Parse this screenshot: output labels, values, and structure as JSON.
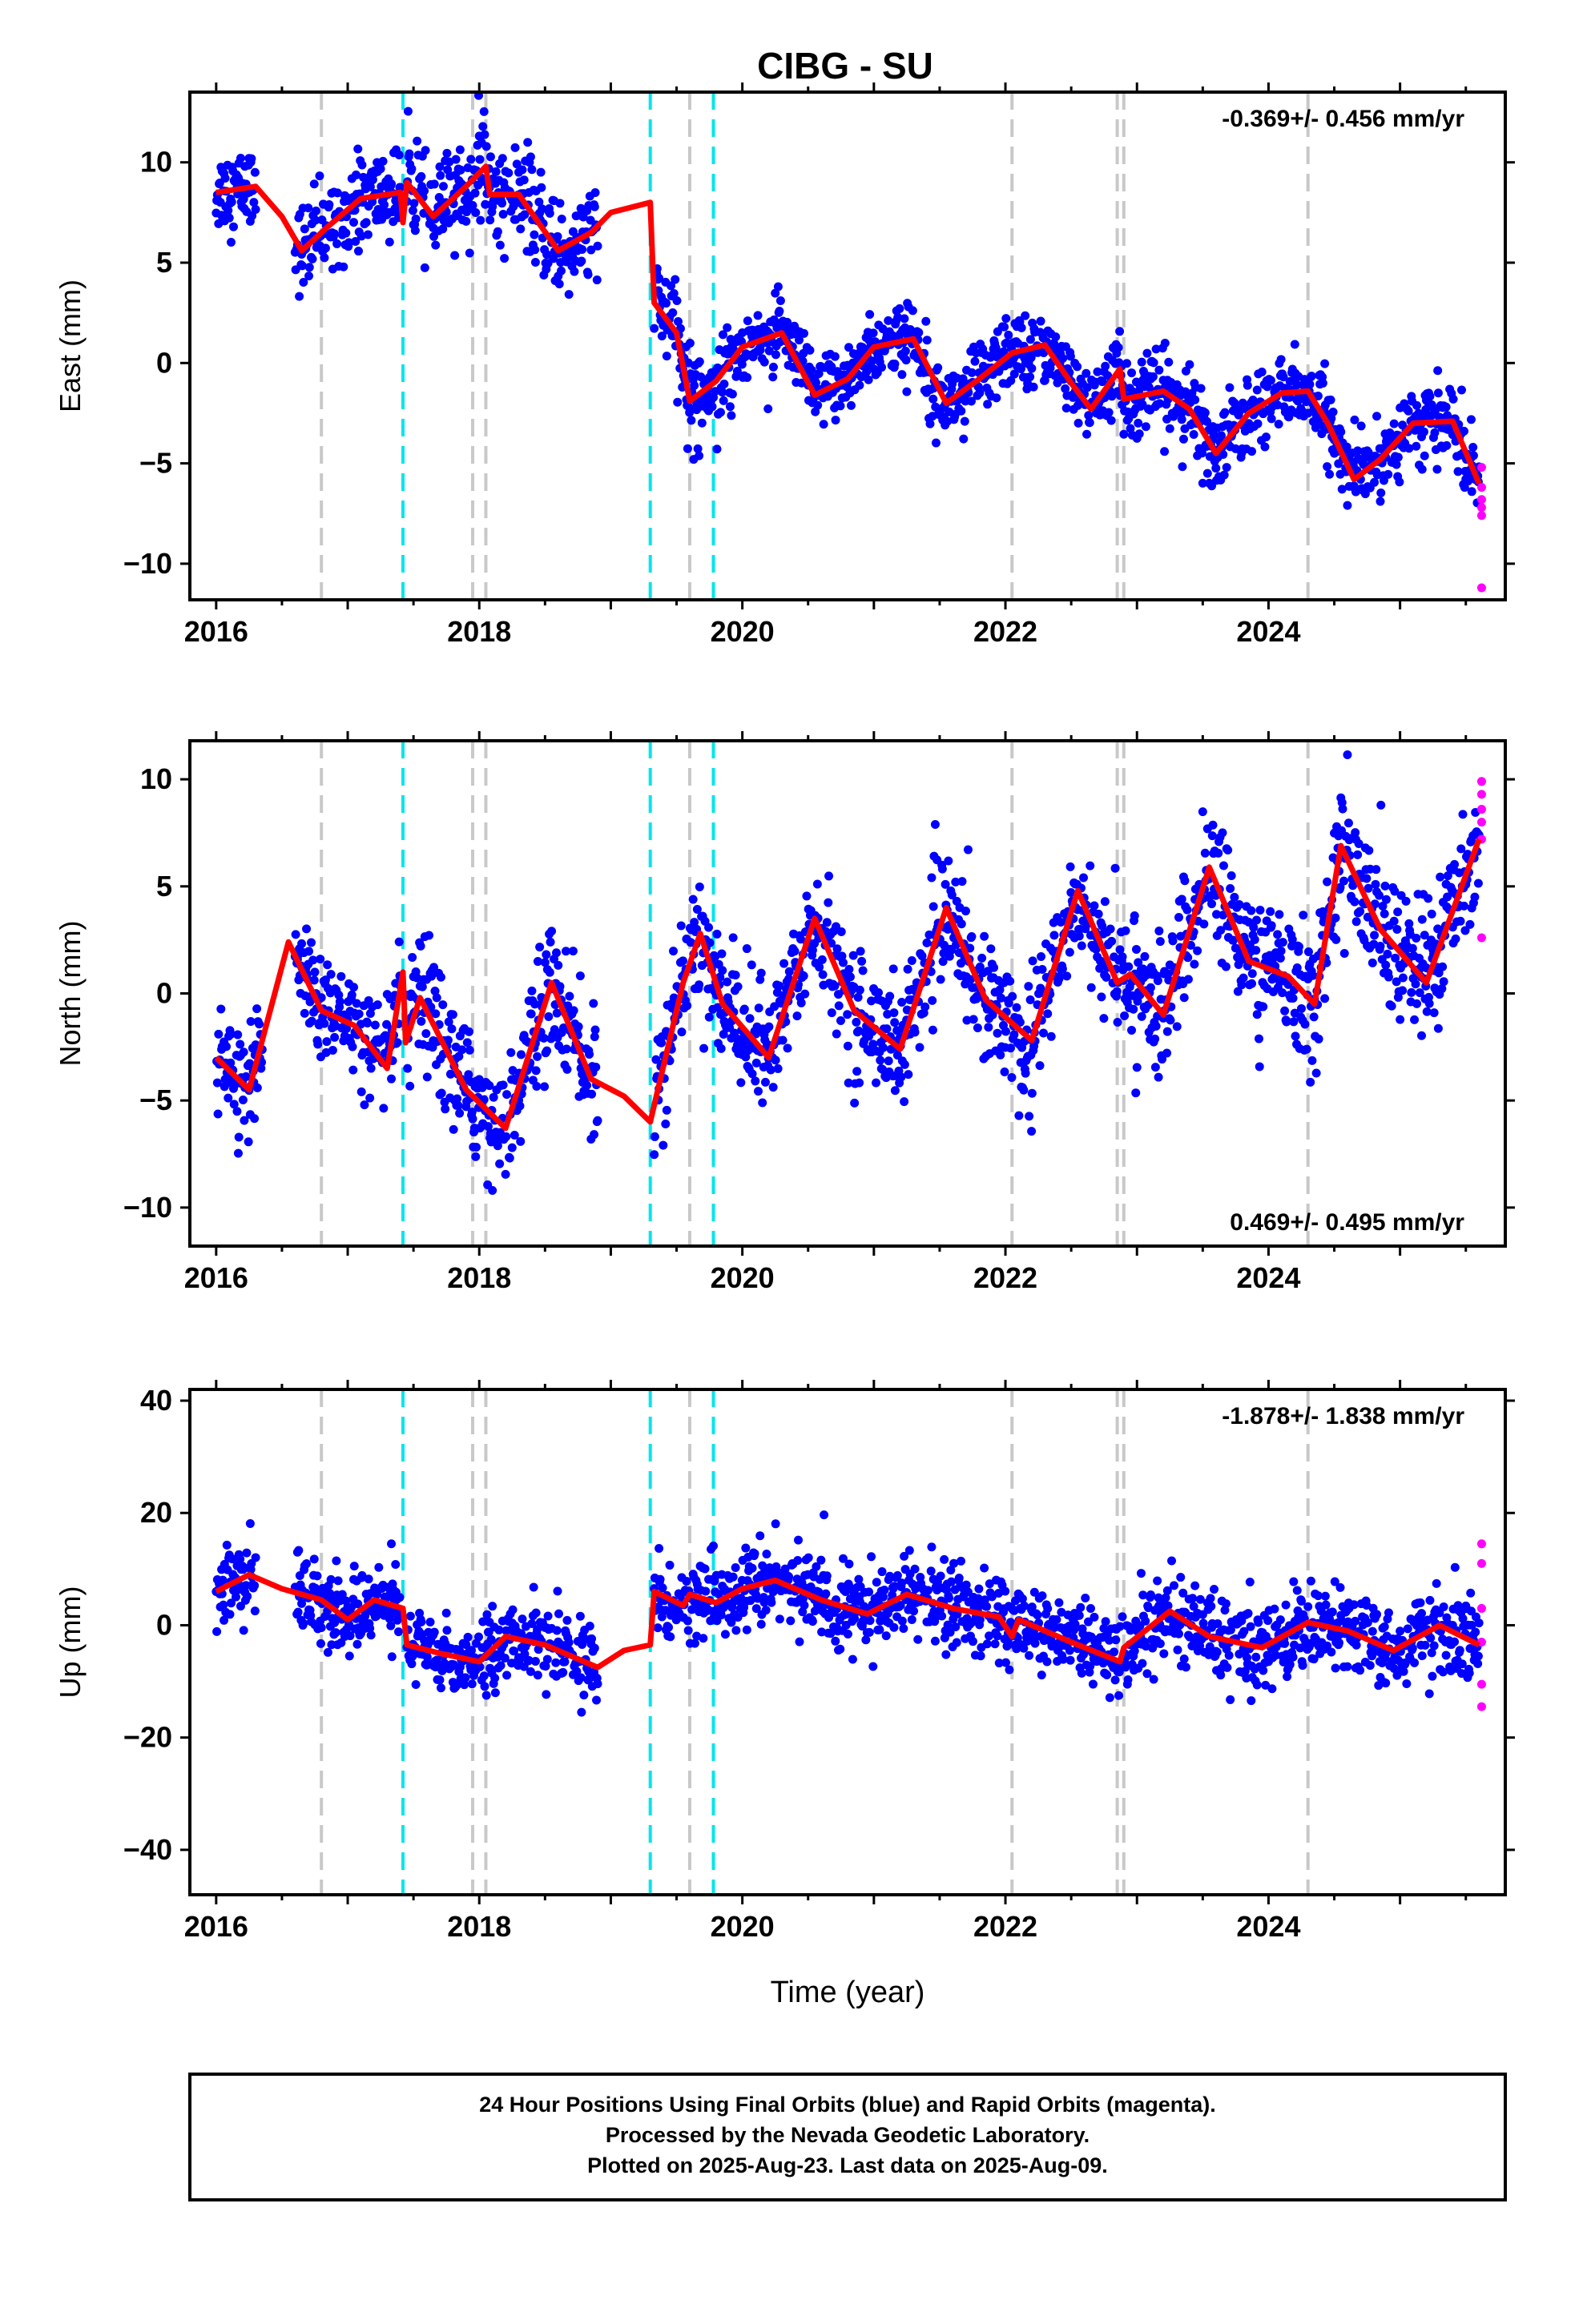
{
  "title": "CIBG - SU",
  "xlabel": "Time (year)",
  "footer": {
    "line1": "24 Hour Positions Using Final Orbits (blue) and Rapid Orbits (magenta).",
    "line2": "Processed by the Nevada Geodetic Laboratory.",
    "line3": "Plotted on 2025-Aug-23. Last data on 2025-Aug-09."
  },
  "colors": {
    "final": "#0000ff",
    "rapid": "#ff00ff",
    "model": "#ff0000",
    "gray_event": "#c8c8c8",
    "cyan_event": "#00e5ee"
  },
  "chart_data": [
    {
      "type": "scatter",
      "ylabel": "East (mm)",
      "rate": "-0.369+/- 0.456 mm/yr",
      "xlim": [
        2015.8,
        2025.8
      ],
      "ylim": [
        -11.8,
        13.5
      ],
      "xticks": [
        2016,
        2018,
        2020,
        2022,
        2024
      ],
      "yticks": [
        -10,
        -5,
        0,
        5,
        10
      ],
      "model": [
        [
          2016.0,
          8.5
        ],
        [
          2016.3,
          8.8
        ],
        [
          2016.5,
          7.3
        ],
        [
          2016.65,
          5.6
        ],
        [
          2016.85,
          6.8
        ],
        [
          2017.1,
          8.2
        ],
        [
          2017.4,
          8.5
        ],
        [
          2017.42,
          7.0
        ],
        [
          2017.45,
          9.0
        ],
        [
          2017.65,
          7.3
        ],
        [
          2017.9,
          8.8
        ],
        [
          2018.05,
          9.8
        ],
        [
          2018.08,
          8.4
        ],
        [
          2018.3,
          8.4
        ],
        [
          2018.6,
          5.6
        ],
        [
          2018.85,
          6.5
        ],
        [
          2019.0,
          7.5
        ],
        [
          2019.3,
          8.0
        ],
        [
          2019.33,
          3.0
        ],
        [
          2019.5,
          1.5
        ],
        [
          2019.6,
          -1.9
        ],
        [
          2019.8,
          -0.9
        ],
        [
          2020.0,
          0.8
        ],
        [
          2020.3,
          1.5
        ],
        [
          2020.55,
          -1.6
        ],
        [
          2020.8,
          -0.8
        ],
        [
          2021.0,
          0.8
        ],
        [
          2021.3,
          1.2
        ],
        [
          2021.55,
          -2.0
        ],
        [
          2021.8,
          -0.8
        ],
        [
          2022.05,
          0.5
        ],
        [
          2022.3,
          0.9
        ],
        [
          2022.5,
          -1.0
        ],
        [
          2022.65,
          -2.3
        ],
        [
          2022.87,
          -0.3
        ],
        [
          2022.9,
          -1.8
        ],
        [
          2023.2,
          -1.4
        ],
        [
          2023.4,
          -2.3
        ],
        [
          2023.6,
          -4.5
        ],
        [
          2023.85,
          -2.5
        ],
        [
          2024.1,
          -1.5
        ],
        [
          2024.3,
          -1.4
        ],
        [
          2024.45,
          -3.0
        ],
        [
          2024.65,
          -5.8
        ],
        [
          2024.85,
          -4.8
        ],
        [
          2025.1,
          -3.0
        ],
        [
          2025.4,
          -2.9
        ],
        [
          2025.6,
          -6.0
        ]
      ],
      "segments": [
        {
          "from": 2016.0,
          "to": 2016.3,
          "mean": 8.4,
          "spread": 1.8
        },
        {
          "from": 2016.6,
          "to": 2017.4,
          "mean": 7.3,
          "spread": 2.0
        },
        {
          "from": 2017.45,
          "to": 2018.9,
          "mean": 8.2,
          "spread": 2.2
        },
        {
          "from": 2019.33,
          "to": 2020.0,
          "mean": 1.0,
          "spread": 2.2
        },
        {
          "from": 2020.0,
          "to": 2022.9,
          "mean": 0.0,
          "spread": 1.6
        },
        {
          "from": 2022.9,
          "to": 2024.5,
          "mean": -2.3,
          "spread": 1.8
        },
        {
          "from": 2024.5,
          "to": 2025.6,
          "mean": -4.0,
          "spread": 1.6
        }
      ],
      "rapid": [
        [
          2025.62,
          -5.2
        ],
        [
          2025.62,
          -6.2
        ],
        [
          2025.62,
          -6.8
        ],
        [
          2025.62,
          -7.2
        ],
        [
          2025.62,
          -7.6
        ],
        [
          2025.62,
          -11.2
        ]
      ]
    },
    {
      "type": "scatter",
      "ylabel": "North (mm)",
      "rate": "0.469+/- 0.495 mm/yr",
      "xlim": [
        2015.8,
        2025.8
      ],
      "ylim": [
        -11.8,
        11.8
      ],
      "xticks": [
        2016,
        2018,
        2020,
        2022,
        2024
      ],
      "yticks": [
        -10,
        -5,
        0,
        5,
        10
      ],
      "model": [
        [
          2016.0,
          -3.0
        ],
        [
          2016.25,
          -4.5
        ],
        [
          2016.55,
          2.4
        ],
        [
          2016.8,
          -0.8
        ],
        [
          2017.05,
          -1.5
        ],
        [
          2017.3,
          -3.5
        ],
        [
          2017.42,
          1.0
        ],
        [
          2017.44,
          -2.3
        ],
        [
          2017.55,
          -0.2
        ],
        [
          2017.9,
          -4.5
        ],
        [
          2018.2,
          -6.3
        ],
        [
          2018.55,
          0.5
        ],
        [
          2018.85,
          -4.0
        ],
        [
          2019.1,
          -4.8
        ],
        [
          2019.3,
          -6.0
        ],
        [
          2019.55,
          0.5
        ],
        [
          2019.68,
          2.8
        ],
        [
          2019.85,
          -0.5
        ],
        [
          2020.2,
          -3.0
        ],
        [
          2020.55,
          3.5
        ],
        [
          2020.85,
          -0.8
        ],
        [
          2021.2,
          -2.6
        ],
        [
          2021.55,
          4.0
        ],
        [
          2021.85,
          -0.3
        ],
        [
          2022.2,
          -2.2
        ],
        [
          2022.55,
          4.8
        ],
        [
          2022.85,
          0.5
        ],
        [
          2022.95,
          0.9
        ],
        [
          2023.2,
          -1.0
        ],
        [
          2023.55,
          5.9
        ],
        [
          2023.85,
          1.5
        ],
        [
          2024.15,
          0.8
        ],
        [
          2024.35,
          -0.5
        ],
        [
          2024.55,
          6.9
        ],
        [
          2024.85,
          3.0
        ],
        [
          2025.2,
          0.5
        ],
        [
          2025.6,
          7.2
        ]
      ],
      "segments": [
        {
          "from": 2016.0,
          "to": 2016.35,
          "mean": -3.5,
          "spread": 2.0
        },
        {
          "from": 2016.6,
          "to": 2017.4,
          "mean": -1.0,
          "spread": 2.2
        },
        {
          "from": 2017.45,
          "to": 2018.9,
          "mean": -3.5,
          "spread": 2.6
        },
        {
          "from": 2019.33,
          "to": 2022.9,
          "mean": 0.0,
          "spread": 2.6
        },
        {
          "from": 2022.9,
          "to": 2025.6,
          "mean": 2.0,
          "spread": 2.8
        }
      ],
      "rapid": [
        [
          2025.62,
          2.6
        ],
        [
          2025.62,
          7.2
        ],
        [
          2025.62,
          8.0
        ],
        [
          2025.62,
          8.6
        ],
        [
          2025.62,
          9.3
        ],
        [
          2025.62,
          9.9
        ]
      ]
    },
    {
      "type": "scatter",
      "ylabel": "Up (mm)",
      "rate": "-1.878+/- 1.838 mm/yr",
      "xlim": [
        2015.8,
        2025.8
      ],
      "ylim": [
        -48,
        42
      ],
      "xticks": [
        2016,
        2018,
        2020,
        2022,
        2024
      ],
      "yticks": [
        -40,
        -20,
        0,
        20,
        40
      ],
      "model": [
        [
          2016.0,
          6.0
        ],
        [
          2016.25,
          9.0
        ],
        [
          2016.5,
          6.5
        ],
        [
          2016.8,
          4.5
        ],
        [
          2017.0,
          1.0
        ],
        [
          2017.2,
          4.5
        ],
        [
          2017.42,
          3.0
        ],
        [
          2017.45,
          -3.5
        ],
        [
          2017.7,
          -5.0
        ],
        [
          2018.0,
          -6.5
        ],
        [
          2018.2,
          -2.0
        ],
        [
          2018.5,
          -3.5
        ],
        [
          2018.9,
          -7.5
        ],
        [
          2019.1,
          -4.5
        ],
        [
          2019.3,
          -3.5
        ],
        [
          2019.33,
          6.0
        ],
        [
          2019.55,
          3.5
        ],
        [
          2019.6,
          5.5
        ],
        [
          2019.8,
          4.0
        ],
        [
          2020.0,
          6.5
        ],
        [
          2020.25,
          8.0
        ],
        [
          2020.6,
          4.5
        ],
        [
          2020.95,
          2.0
        ],
        [
          2021.25,
          5.5
        ],
        [
          2021.6,
          3.0
        ],
        [
          2021.95,
          1.5
        ],
        [
          2022.05,
          -2.0
        ],
        [
          2022.1,
          1.0
        ],
        [
          2022.5,
          -3.0
        ],
        [
          2022.87,
          -6.5
        ],
        [
          2022.9,
          -4.0
        ],
        [
          2023.25,
          2.5
        ],
        [
          2023.55,
          -2.0
        ],
        [
          2023.95,
          -4.0
        ],
        [
          2024.3,
          0.5
        ],
        [
          2024.6,
          -1.0
        ],
        [
          2024.95,
          -4.5
        ],
        [
          2025.3,
          0.0
        ],
        [
          2025.6,
          -3.5
        ]
      ],
      "segments": [
        {
          "from": 2016.0,
          "to": 2016.3,
          "mean": 7.0,
          "spread": 6.0
        },
        {
          "from": 2016.6,
          "to": 2017.4,
          "mean": 3.0,
          "spread": 6.0
        },
        {
          "from": 2017.45,
          "to": 2018.9,
          "mean": -5.0,
          "spread": 6.0
        },
        {
          "from": 2019.33,
          "to": 2022.9,
          "mean": 3.0,
          "spread": 6.5
        },
        {
          "from": 2022.9,
          "to": 2025.6,
          "mean": -2.0,
          "spread": 7.0
        }
      ],
      "rapid": [
        [
          2025.62,
          -14.5
        ],
        [
          2025.62,
          -10.5
        ],
        [
          2025.62,
          -3.0
        ],
        [
          2025.62,
          3.0
        ],
        [
          2025.62,
          11.0
        ],
        [
          2025.62,
          14.5
        ]
      ]
    }
  ],
  "events": {
    "gray": [
      2016.8,
      2017.95,
      2018.05,
      2019.6,
      2022.05,
      2022.85,
      2022.9,
      2024.3
    ],
    "cyan": [
      2017.42,
      2019.3,
      2019.78
    ]
  }
}
